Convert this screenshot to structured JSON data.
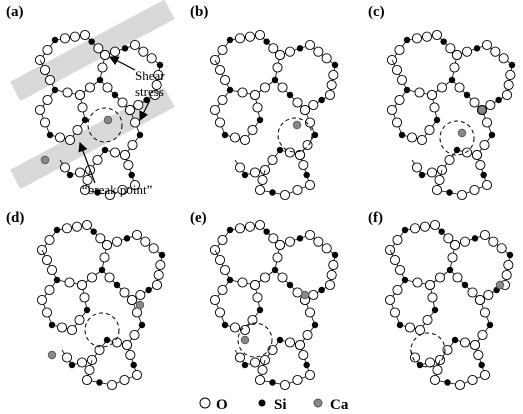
{
  "panels": [
    {
      "label": "(a)"
    },
    {
      "label": "(b)"
    },
    {
      "label": "(c)"
    },
    {
      "label": "(d)"
    },
    {
      "label": "(e)"
    },
    {
      "label": "(f)"
    }
  ],
  "annotations": {
    "shear_stress": [
      "Shear",
      "stress"
    ],
    "break_point": "“break point”"
  },
  "legend": [
    {
      "label": "O"
    },
    {
      "label": "Si"
    },
    {
      "label": "Ca"
    }
  ]
}
